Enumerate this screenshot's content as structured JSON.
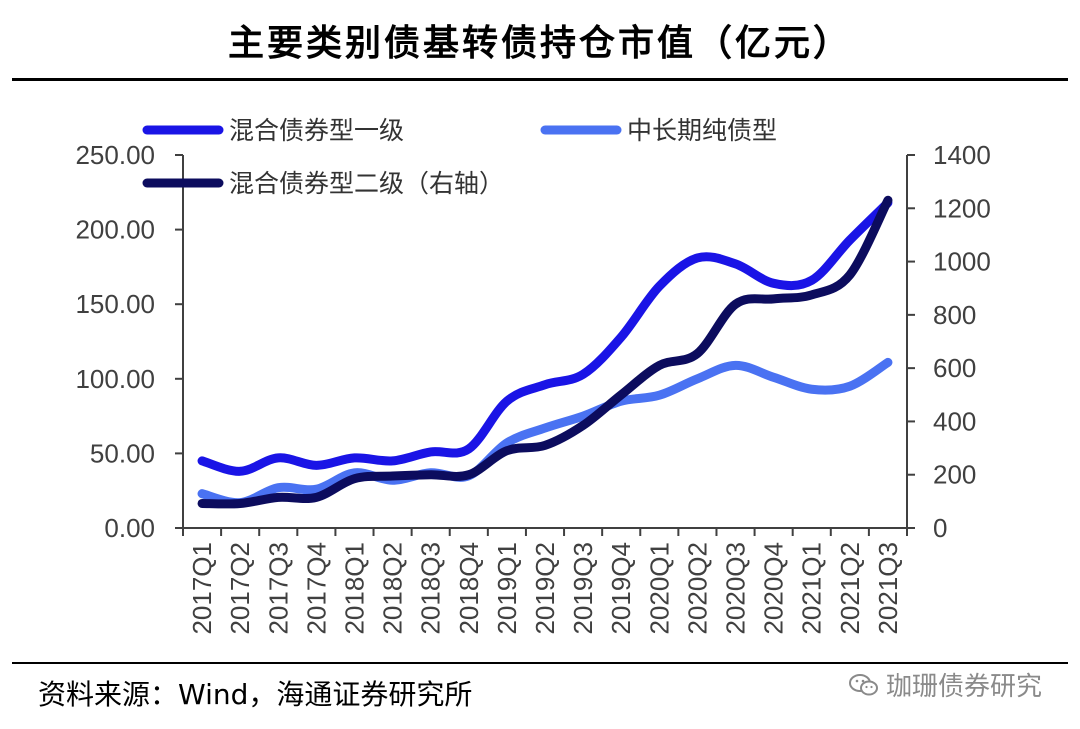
{
  "chart_data": {
    "type": "line",
    "title": "主要类别债基转债持仓市值（亿元）",
    "categories": [
      "2017Q1",
      "2017Q2",
      "2017Q3",
      "2017Q4",
      "2018Q1",
      "2018Q2",
      "2018Q3",
      "2018Q4",
      "2019Q1",
      "2019Q2",
      "2019Q3",
      "2019Q4",
      "2020Q1",
      "2020Q2",
      "2020Q3",
      "2020Q4",
      "2021Q1",
      "2021Q2",
      "2021Q3"
    ],
    "left_axis": {
      "ylim": [
        0,
        250
      ],
      "ticks": [
        "0.00",
        "50.00",
        "100.00",
        "150.00",
        "200.00",
        "250.00"
      ]
    },
    "right_axis": {
      "ylim": [
        0,
        1400
      ],
      "ticks": [
        "0",
        "200",
        "400",
        "600",
        "800",
        "1000",
        "1200",
        "1400"
      ]
    },
    "series": [
      {
        "name": "混合债券型一级",
        "axis": "left",
        "color": "#1a14e6",
        "values": [
          45,
          38,
          47,
          42,
          47,
          45,
          51,
          53,
          85,
          96,
          103,
          128,
          162,
          181,
          177,
          164,
          166,
          193,
          218
        ]
      },
      {
        "name": "中长期纯债型",
        "axis": "left",
        "color": "#4a72f2",
        "values": [
          23,
          17,
          27,
          26,
          37,
          32,
          37,
          35,
          57,
          67,
          75,
          85,
          89,
          100,
          109,
          101,
          93,
          95,
          111
        ]
      },
      {
        "name": "混合债券型二级（右轴）",
        "axis": "right",
        "color": "#0c0c5e",
        "values": [
          92,
          92,
          115,
          115,
          185,
          195,
          200,
          200,
          290,
          310,
          385,
          500,
          610,
          655,
          840,
          860,
          875,
          950,
          1230
        ]
      }
    ]
  },
  "footer": {
    "source": "资料来源：Wind，海通证券研究所",
    "watermark": "珈珊债券研究"
  }
}
